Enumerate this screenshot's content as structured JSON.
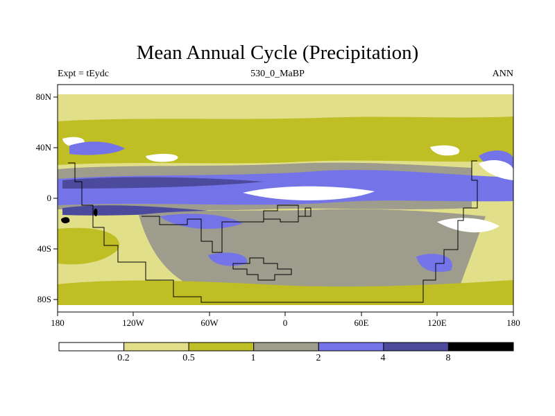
{
  "title": "Mean Annual Cycle (Precipitation)",
  "subtitle_left": "Expt = tEydc",
  "subtitle_center": "530_0_MaBP",
  "subtitle_right": "ANN",
  "y_axis_labels": [
    "80N",
    "40N",
    "0",
    "40S",
    "80S"
  ],
  "x_axis_labels": [
    "180",
    "120W",
    "60W",
    "0",
    "60E",
    "120E",
    "180"
  ],
  "colorbar": {
    "labels": [
      "0.2",
      "0.5",
      "1",
      "2",
      "4",
      "8"
    ],
    "colors": [
      "#ffffff",
      "#e2df8a",
      "#bfbe25",
      "#9e9c8c",
      "#7474e8",
      "#4c4a9c",
      "#000000"
    ]
  },
  "chart_data": {
    "type": "filled_contour_map",
    "title": "Mean Annual Cycle (Precipitation)",
    "variable": "Precipitation",
    "experiment": "tEydc",
    "period": "530_0_MaBP",
    "season": "ANN",
    "x_range_degrees": [
      -180,
      180
    ],
    "y_range_degrees": [
      -90,
      90
    ],
    "contour_levels": [
      0.2,
      0.5,
      1,
      2,
      4,
      8
    ],
    "colors": [
      "#ffffff",
      "#e2df8a",
      "#bfbe25",
      "#9e9c8c",
      "#7474e8",
      "#4c4a9c",
      "#000000"
    ]
  }
}
